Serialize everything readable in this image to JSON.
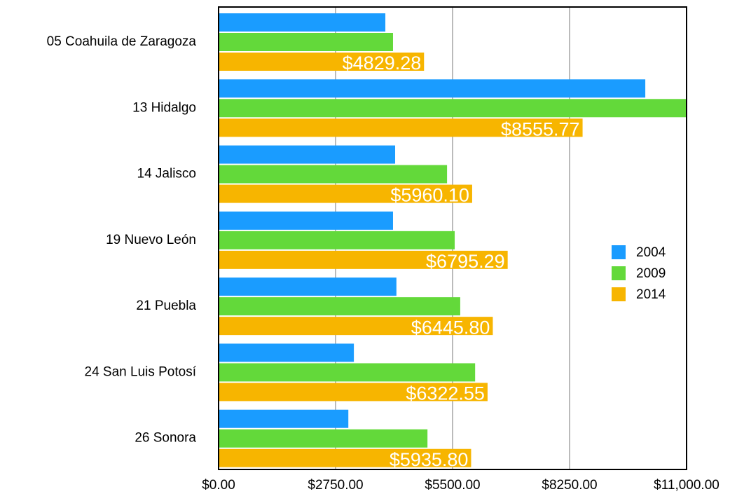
{
  "chart_data": {
    "type": "bar",
    "orientation": "horizontal",
    "categories": [
      "05 Coahuila de Zaragoza",
      "13 Hidalgo",
      "14 Jalisco",
      "19 Nuevo León",
      "21 Puebla",
      "24 San Luis Potosí",
      "26 Sonora"
    ],
    "series": [
      {
        "name": "2004",
        "color": "#1a9cff",
        "values": [
          3920,
          10030,
          4150,
          4100,
          4180,
          3180,
          3050
        ]
      },
      {
        "name": "2009",
        "color": "#63d93a",
        "values": [
          4100,
          11000,
          5370,
          5550,
          5680,
          6030,
          4910
        ]
      },
      {
        "name": "2014",
        "color": "#f7b500",
        "values": [
          4829.28,
          8555.77,
          5960.1,
          6795.29,
          6445.8,
          6322.55,
          5935.8
        ],
        "value_labels": [
          "$4829.28",
          "$8555.77",
          "$5960.10",
          "$6795.29",
          "$6445.80",
          "$6322.55",
          "$5935.80"
        ]
      }
    ],
    "xlim": [
      0,
      11000
    ],
    "xticks": [
      {
        "value": 0,
        "label": "$0.00"
      },
      {
        "value": 2750,
        "label": "$2750.00"
      },
      {
        "value": 5500,
        "label": "$5500.00"
      },
      {
        "value": 8250,
        "label": "$8250.00"
      },
      {
        "value": 11000,
        "label": "$11,000.00"
      }
    ],
    "grid": true,
    "legend": "right"
  }
}
